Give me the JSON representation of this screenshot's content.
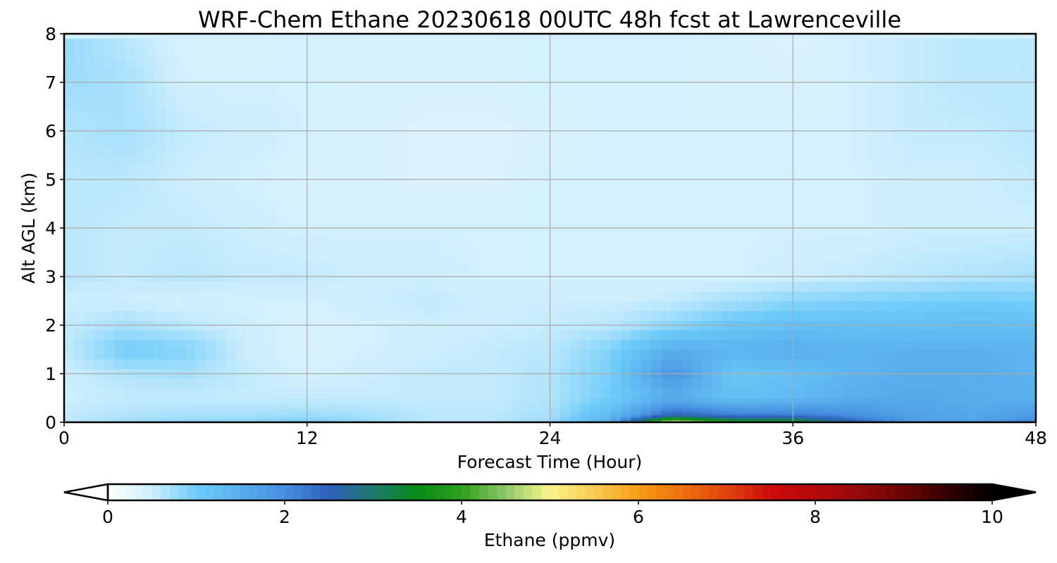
{
  "chart_data": {
    "type": "heatmap",
    "title": "WRF-Chem Ethane  20230618 00UTC 48h fcst at Lawrenceville",
    "xlabel": "Forecast Time (Hour)",
    "ylabel": "Alt AGL (km)",
    "xlim": [
      0,
      48
    ],
    "ylim": [
      0,
      8
    ],
    "xticks": [
      "0",
      "12",
      "24",
      "36",
      "48"
    ],
    "yticks": [
      "0",
      "1",
      "2",
      "3",
      "4",
      "5",
      "6",
      "7",
      "8"
    ],
    "grid": true,
    "x": [
      0,
      3,
      6,
      9,
      12,
      15,
      18,
      21,
      24,
      27,
      30,
      33,
      36,
      39,
      42,
      45,
      48
    ],
    "y": [
      0,
      0.15,
      0.5,
      1,
      1.5,
      2,
      2.5,
      3,
      4,
      5,
      6,
      7,
      8
    ],
    "z": [
      [
        0.6,
        0.75,
        0.85,
        0.9,
        1.0,
        0.8,
        0.6,
        0.6,
        0.8,
        1.6,
        5.0,
        3.8,
        3.7,
        2.6,
        1.8,
        1.7,
        2.2
      ],
      [
        0.55,
        0.65,
        0.7,
        0.7,
        0.75,
        0.7,
        0.6,
        0.6,
        0.7,
        1.3,
        2.5,
        2.2,
        2.2,
        2.0,
        1.7,
        1.6,
        1.8
      ],
      [
        0.5,
        0.55,
        0.55,
        0.55,
        0.55,
        0.55,
        0.55,
        0.55,
        0.65,
        1.0,
        1.5,
        1.2,
        1.3,
        1.5,
        1.6,
        1.5,
        1.5
      ],
      [
        0.5,
        0.65,
        0.7,
        0.55,
        0.45,
        0.5,
        0.55,
        0.55,
        0.65,
        0.95,
        1.9,
        1.1,
        1.2,
        1.4,
        1.5,
        1.5,
        1.4
      ],
      [
        0.55,
        1.0,
        0.9,
        0.5,
        0.4,
        0.45,
        0.5,
        0.55,
        0.6,
        0.9,
        1.5,
        1.4,
        1.5,
        1.4,
        1.45,
        1.45,
        1.4
      ],
      [
        0.55,
        0.7,
        0.6,
        0.5,
        0.4,
        0.45,
        0.5,
        0.5,
        0.55,
        0.6,
        0.85,
        1.1,
        1.2,
        1.2,
        1.2,
        1.25,
        1.2
      ],
      [
        0.5,
        0.5,
        0.45,
        0.45,
        0.45,
        0.5,
        0.55,
        0.5,
        0.5,
        0.5,
        0.55,
        0.7,
        0.85,
        0.9,
        0.95,
        1.0,
        0.95
      ],
      [
        0.6,
        0.55,
        0.6,
        0.55,
        0.55,
        0.5,
        0.5,
        0.45,
        0.45,
        0.45,
        0.45,
        0.45,
        0.5,
        0.55,
        0.6,
        0.65,
        0.7
      ],
      [
        0.6,
        0.55,
        0.55,
        0.5,
        0.45,
        0.45,
        0.45,
        0.45,
        0.45,
        0.45,
        0.45,
        0.45,
        0.45,
        0.45,
        0.5,
        0.5,
        0.5
      ],
      [
        0.6,
        0.6,
        0.5,
        0.45,
        0.4,
        0.4,
        0.35,
        0.35,
        0.45,
        0.45,
        0.45,
        0.45,
        0.45,
        0.45,
        0.5,
        0.5,
        0.55
      ],
      [
        0.65,
        0.7,
        0.55,
        0.5,
        0.45,
        0.4,
        0.35,
        0.35,
        0.4,
        0.45,
        0.45,
        0.45,
        0.45,
        0.45,
        0.55,
        0.55,
        0.6
      ],
      [
        0.75,
        0.7,
        0.45,
        0.45,
        0.45,
        0.4,
        0.4,
        0.4,
        0.45,
        0.45,
        0.45,
        0.4,
        0.4,
        0.45,
        0.55,
        0.6,
        0.6
      ],
      [
        0.8,
        0.6,
        0.4,
        0.4,
        0.45,
        0.4,
        0.4,
        0.4,
        0.45,
        0.45,
        0.45,
        0.4,
        0.35,
        0.45,
        0.55,
        0.6,
        0.6
      ]
    ],
    "colorbar": {
      "label": "Ethane  (ppmv)",
      "min": 0,
      "max": 10,
      "ticks": [
        "0",
        "2",
        "4",
        "6",
        "8",
        "10"
      ],
      "extend": "both",
      "orientation": "horizontal",
      "stops": [
        [
          0,
          "#ffffff"
        ],
        [
          0.5,
          "#cdeefd"
        ],
        [
          1.0,
          "#6ecbf9"
        ],
        [
          1.5,
          "#58aeeb"
        ],
        [
          2.0,
          "#4690e0"
        ],
        [
          2.5,
          "#2d5fbc"
        ],
        [
          3.0,
          "#20796f"
        ],
        [
          3.5,
          "#068c17"
        ],
        [
          4.0,
          "#2f9f1c"
        ],
        [
          4.5,
          "#8fc86a"
        ],
        [
          5.0,
          "#fcf58c"
        ],
        [
          5.5,
          "#f9ca55"
        ],
        [
          6.0,
          "#f79d15"
        ],
        [
          6.5,
          "#ed6f11"
        ],
        [
          7.0,
          "#e0440e"
        ],
        [
          7.5,
          "#cd0a0a"
        ],
        [
          8.0,
          "#b40a0a"
        ],
        [
          8.5,
          "#950a0a"
        ],
        [
          9.0,
          "#6a0505"
        ],
        [
          9.5,
          "#330000"
        ],
        [
          10,
          "#000000"
        ]
      ]
    }
  }
}
